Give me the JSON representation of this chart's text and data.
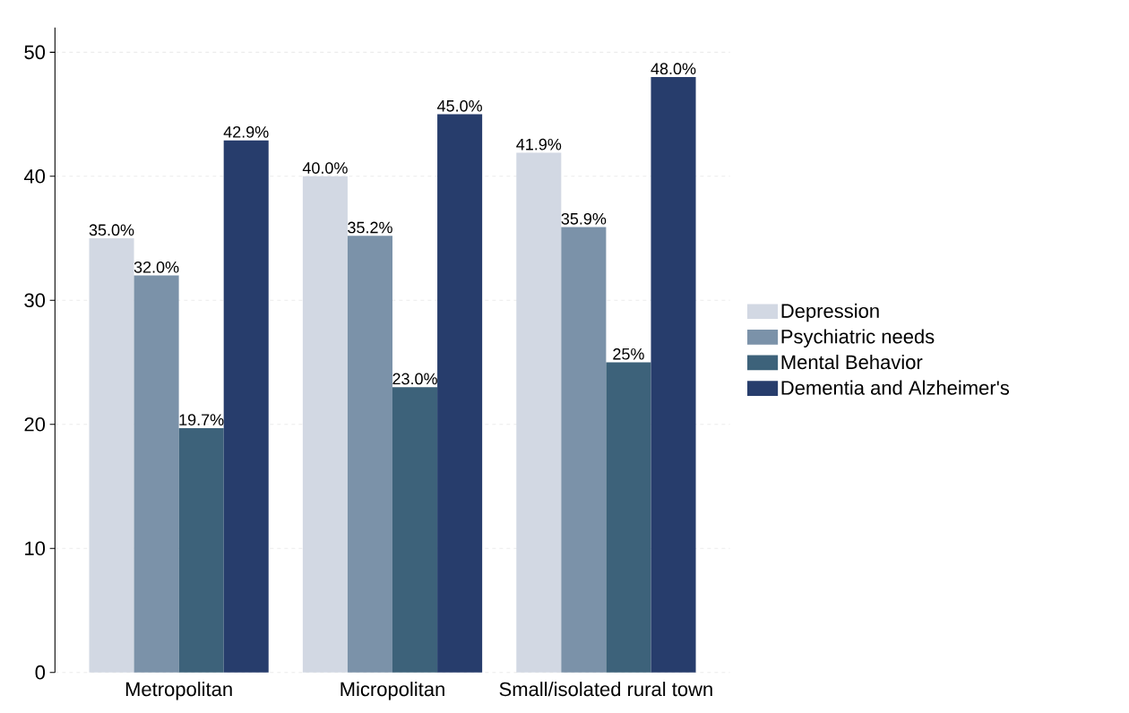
{
  "chart_data": {
    "type": "bar",
    "categories": [
      "Metropolitan",
      "Micropolitan",
      "Small/isolated rural town"
    ],
    "series": [
      {
        "name": "Depression",
        "color": "#d2d8e3",
        "values": [
          35.0,
          40.0,
          41.9
        ],
        "value_labels": [
          "35.0%",
          "40.0%",
          "41.9%"
        ]
      },
      {
        "name": "Psychiatric needs",
        "color": "#7b92a9",
        "values": [
          32.0,
          35.2,
          35.9
        ],
        "value_labels": [
          "32.0%",
          "35.2%",
          "35.9%"
        ]
      },
      {
        "name": "Mental Behavior",
        "color": "#3d627a",
        "values": [
          19.7,
          23.0,
          25
        ],
        "value_labels": [
          "19.7%",
          "23.0%",
          "25%"
        ]
      },
      {
        "name": "Dementia and Alzheimer's",
        "color": "#273d6c",
        "values": [
          42.9,
          45.0,
          48.0
        ],
        "value_labels": [
          "42.9%",
          "45.0%",
          "48.0%"
        ]
      }
    ],
    "ylim": [
      0,
      52
    ],
    "yticks": [
      0,
      10,
      20,
      30,
      40,
      50
    ],
    "grid": "y",
    "legend": "right"
  }
}
